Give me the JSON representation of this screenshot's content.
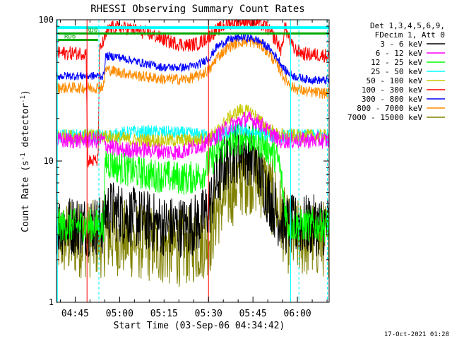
{
  "chart_data": {
    "type": "line",
    "title": "RHESSI Observing Summary Count Rates",
    "xlabel": "Start Time (03-Sep-06 04:34:42)",
    "ylabel_main": "Count Rate (s",
    "ylabel_sup1": "-1",
    "ylabel_mid": " detector",
    "ylabel_sup2": "-1",
    "ylabel_end": ")",
    "footer": "17-Oct-2021 01:28",
    "yscale": "log",
    "ylim": [
      1,
      100
    ],
    "xlim_minutes": [
      4.0,
      96.0
    ],
    "y_ticks": [
      {
        "value": 1,
        "label": "1"
      },
      {
        "value": 10,
        "label": "10"
      },
      {
        "value": 100,
        "label": "100"
      }
    ],
    "x_ticks": [
      {
        "value": 10.3,
        "label": "04:45"
      },
      {
        "value": 25.3,
        "label": "05:00"
      },
      {
        "value": 40.3,
        "label": "05:15"
      },
      {
        "value": 55.3,
        "label": "05:30"
      },
      {
        "value": 70.3,
        "label": "05:45"
      },
      {
        "value": 85.3,
        "label": "06:00"
      }
    ],
    "legend_header": [
      "Det 1,3,4,5,6,9,",
      "FDecim 1, Att 0"
    ],
    "series": [
      {
        "name": "3 - 6 keV",
        "color": "#000000",
        "x": [
          4,
          20,
          20.5,
          22,
          30,
          40,
          48,
          53,
          56,
          58,
          60,
          63,
          66,
          69,
          72,
          75,
          79,
          82,
          86,
          96
        ],
        "y": [
          3.5,
          3.5,
          4.5,
          4.5,
          4.0,
          3.5,
          3.4,
          3.8,
          5,
          7,
          9,
          11,
          12,
          11,
          9,
          6,
          4,
          3.5,
          3.5,
          3.5
        ]
      },
      {
        "name": "6 - 12 keV",
        "color": "#ff00ff",
        "x": [
          4,
          20,
          20.5,
          25,
          35,
          45,
          55,
          58,
          63,
          68,
          72,
          76,
          79,
          82,
          86,
          96
        ],
        "y": [
          14,
          14,
          13,
          12,
          12,
          11.5,
          13.5,
          15,
          18,
          20,
          19,
          16,
          14,
          14,
          14,
          14
        ]
      },
      {
        "name": "12 - 25 keV",
        "color": "#00ff00",
        "x": [
          4,
          20,
          20.5,
          25,
          35,
          48,
          53,
          56,
          60,
          64,
          68,
          72,
          76,
          79,
          82,
          86,
          96
        ],
        "y": [
          3.5,
          3.5,
          10,
          9,
          8,
          7.5,
          8,
          10,
          12.5,
          14,
          15,
          14,
          12,
          10,
          3.5,
          3.5,
          3.5
        ]
      },
      {
        "name": "25 - 50 keV",
        "color": "#00ffff",
        "x": [
          4,
          20,
          20.5,
          30,
          40,
          50,
          55,
          58,
          62,
          66,
          70,
          74,
          78,
          82,
          86,
          96
        ],
        "y": [
          15,
          15,
          15,
          16,
          16,
          15.5,
          15,
          15,
          16,
          17,
          16,
          15.5,
          15,
          15,
          15,
          15
        ]
      },
      {
        "name": "50 - 100 keV",
        "color": "#c8c800",
        "x": [
          4,
          20,
          20.5,
          30,
          40,
          50,
          55,
          58,
          62,
          66,
          70,
          74,
          78,
          82,
          86,
          96
        ],
        "y": [
          15,
          15,
          15,
          14,
          14,
          14,
          14.5,
          16,
          20,
          23,
          22,
          18,
          15.5,
          15,
          15,
          15
        ]
      },
      {
        "name": "100 - 300 keV",
        "color": "#ff0000",
        "x": [
          4,
          14,
          14.5,
          18,
          18.5,
          21,
          22,
          28,
          35,
          42,
          48,
          52,
          55,
          58,
          62,
          66,
          69,
          72,
          75,
          78,
          80,
          81,
          84,
          88,
          96
        ],
        "y": [
          58,
          58,
          10,
          10,
          60,
          80,
          88,
          87,
          80,
          70,
          66,
          68,
          75,
          84,
          95,
          98,
          98,
          96,
          88,
          72,
          60,
          90,
          62,
          57,
          56
        ]
      },
      {
        "name": "300 - 800 keV",
        "color": "#0000ff",
        "x": [
          4,
          14,
          18,
          20,
          20.5,
          24,
          32,
          40,
          48,
          52,
          56,
          58,
          62,
          66,
          70,
          73,
          76,
          79,
          81,
          84,
          88,
          96
        ],
        "y": [
          40,
          40,
          40,
          40,
          55,
          55,
          50,
          46,
          46,
          48,
          55,
          64,
          72,
          75,
          74,
          70,
          62,
          52,
          44,
          40,
          38,
          37
        ]
      },
      {
        "name": "800 - 7000 keV",
        "color": "#ff8c00",
        "x": [
          4,
          14,
          18,
          20,
          20.5,
          24,
          32,
          40,
          48,
          52,
          56,
          58,
          62,
          66,
          70,
          73,
          76,
          79,
          81,
          84,
          88,
          96
        ],
        "y": [
          33,
          33,
          33,
          34,
          45,
          43,
          40,
          38,
          38,
          40,
          45,
          54,
          64,
          70,
          70,
          66,
          57,
          46,
          38,
          33,
          31,
          30
        ]
      },
      {
        "name": "7000 - 15000 keV",
        "color": "#808000",
        "x": [
          4,
          20,
          20.5,
          28,
          36,
          44,
          52,
          56,
          58,
          62,
          66,
          70,
          74,
          78,
          82,
          86,
          96
        ],
        "y": [
          2.8,
          2.8,
          3.0,
          2.8,
          2.6,
          2.4,
          2.6,
          3.0,
          4.5,
          6,
          7.5,
          8,
          7,
          5,
          3.0,
          2.8,
          2.8
        ]
      }
    ],
    "attenuator_bars": [
      {
        "label": "RD0",
        "color": "#00aa00",
        "x_start": 4,
        "x_end": 96,
        "y": 80
      },
      {
        "label": "RD6",
        "color": "#00aa00",
        "x_start": 4,
        "x_end": 18,
        "y": 72
      }
    ],
    "cyan_bar": {
      "x_start": 4,
      "x_end": 96,
      "y": 88
    },
    "vlines_solid": [
      {
        "x": 14.3,
        "color": "#ff0000"
      },
      {
        "x": 55.3,
        "color": "#ff0000"
      },
      {
        "x": 4.3,
        "color": "#00ffff"
      },
      {
        "x": 83.0,
        "color": "#00ffff"
      }
    ],
    "vlines_dashed": [
      {
        "x": 18.3,
        "color": "#00ffff"
      },
      {
        "x": 85.8,
        "color": "#00ffff"
      },
      {
        "x": 95.4,
        "color": "#00ffff"
      }
    ]
  }
}
